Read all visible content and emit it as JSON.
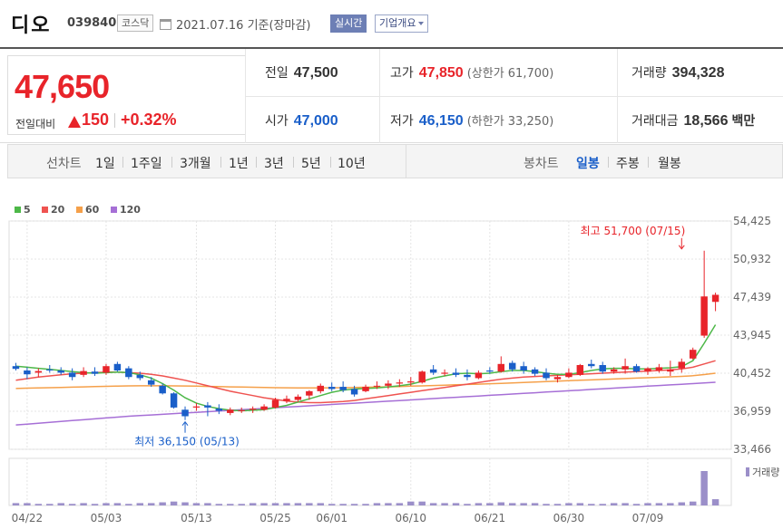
{
  "header": {
    "name": "디오",
    "code": "039840",
    "market": "코스닥",
    "date_text": "2021.07.16 기준(장마감)",
    "realtime_label": "실시간",
    "overview_label": "기업개요"
  },
  "quote": {
    "price": "47,650",
    "change_label": "전일대비",
    "change_amount": "150",
    "change_rate": "+0.32%",
    "prev_close_label": "전일",
    "prev_close": "47,500",
    "high_label": "고가",
    "high": "47,850",
    "upper_limit": "(상한가 61,700)",
    "volume_label": "거래량",
    "volume": "394,328",
    "open_label": "시가",
    "open": "47,000",
    "low_label": "저가",
    "low": "46,150",
    "lower_limit": "(하한가 33,250)",
    "amount_label": "거래대금",
    "amount": "18,566",
    "amount_unit": "백만"
  },
  "periods": {
    "line_chart_label": "선차트",
    "line_items": [
      "1일",
      "1주일",
      "3개월",
      "1년",
      "3년",
      "5년",
      "10년"
    ],
    "candle_chart_label": "봉차트",
    "candle_items": [
      "일봉",
      "주봉",
      "월봉"
    ],
    "active_candle": "일봉"
  },
  "colors": {
    "up": "#e8242a",
    "down": "#1a5fc9",
    "ma5": "#4db848",
    "ma20": "#ef5350",
    "ma60": "#f5a04a",
    "ma120": "#a66fd6",
    "volume": "#9b8fc9"
  },
  "chart_data": {
    "type": "candlestick",
    "legend": [
      {
        "name": "5",
        "color": "#4db848"
      },
      {
        "name": "20",
        "color": "#ef5350"
      },
      {
        "name": "60",
        "color": "#f5a04a"
      },
      {
        "name": "120",
        "color": "#a66fd6"
      }
    ],
    "y_ticks": [
      "54,425",
      "50,932",
      "47,439",
      "43,945",
      "40,452",
      "36,959",
      "33,466"
    ],
    "ylim": [
      33466,
      54425
    ],
    "x_ticks": [
      {
        "label": "04/22",
        "index": 1
      },
      {
        "label": "05/03",
        "index": 8
      },
      {
        "label": "05/13",
        "index": 16
      },
      {
        "label": "05/25",
        "index": 23
      },
      {
        "label": "06/01",
        "index": 28
      },
      {
        "label": "06/10",
        "index": 35
      },
      {
        "label": "06/21",
        "index": 42
      },
      {
        "label": "06/30",
        "index": 49
      },
      {
        "label": "07/09",
        "index": 56
      }
    ],
    "max_annotation": {
      "text": "최고 51,700 (07/15)",
      "index": 59,
      "value": 51700
    },
    "min_annotation": {
      "text": "최저 36,150 (05/13)",
      "index": 15,
      "value": 36150
    },
    "volume_label": "거래량",
    "candles": [
      {
        "o": 41100,
        "h": 41400,
        "l": 40700,
        "c": 40850
      },
      {
        "o": 40700,
        "h": 41000,
        "l": 39900,
        "c": 40350
      },
      {
        "o": 40500,
        "h": 40900,
        "l": 40100,
        "c": 40650
      },
      {
        "o": 40800,
        "h": 41200,
        "l": 40500,
        "c": 40700
      },
      {
        "o": 40700,
        "h": 41000,
        "l": 40300,
        "c": 40500
      },
      {
        "o": 40500,
        "h": 40900,
        "l": 39800,
        "c": 40100
      },
      {
        "o": 40300,
        "h": 41000,
        "l": 40100,
        "c": 40650
      },
      {
        "o": 40600,
        "h": 41000,
        "l": 40200,
        "c": 40400
      },
      {
        "o": 40500,
        "h": 41300,
        "l": 40300,
        "c": 41100
      },
      {
        "o": 41300,
        "h": 41500,
        "l": 40600,
        "c": 40700
      },
      {
        "o": 40900,
        "h": 41100,
        "l": 39900,
        "c": 40100
      },
      {
        "o": 40300,
        "h": 40600,
        "l": 39800,
        "c": 40000
      },
      {
        "o": 39800,
        "h": 40100,
        "l": 39200,
        "c": 39400
      },
      {
        "o": 39300,
        "h": 39500,
        "l": 38500,
        "c": 38600
      },
      {
        "o": 38600,
        "h": 38700,
        "l": 37200,
        "c": 37300
      },
      {
        "o": 37100,
        "h": 37400,
        "l": 36150,
        "c": 36500
      },
      {
        "o": 37300,
        "h": 37700,
        "l": 37000,
        "c": 37400
      },
      {
        "o": 37500,
        "h": 37800,
        "l": 36500,
        "c": 37300
      },
      {
        "o": 37200,
        "h": 37600,
        "l": 36700,
        "c": 37000
      },
      {
        "o": 36800,
        "h": 37300,
        "l": 36600,
        "c": 37100
      },
      {
        "o": 37000,
        "h": 37300,
        "l": 36800,
        "c": 37050
      },
      {
        "o": 37100,
        "h": 37400,
        "l": 36800,
        "c": 37200
      },
      {
        "o": 37100,
        "h": 37600,
        "l": 37000,
        "c": 37400
      },
      {
        "o": 37300,
        "h": 38200,
        "l": 37200,
        "c": 38000
      },
      {
        "o": 37900,
        "h": 38400,
        "l": 37700,
        "c": 38100
      },
      {
        "o": 38000,
        "h": 38500,
        "l": 37800,
        "c": 38300
      },
      {
        "o": 38400,
        "h": 38900,
        "l": 38000,
        "c": 38800
      },
      {
        "o": 38800,
        "h": 39500,
        "l": 38600,
        "c": 39300
      },
      {
        "o": 39200,
        "h": 39600,
        "l": 38800,
        "c": 39000
      },
      {
        "o": 39200,
        "h": 39700,
        "l": 38700,
        "c": 38900
      },
      {
        "o": 39000,
        "h": 39300,
        "l": 38300,
        "c": 38500
      },
      {
        "o": 38800,
        "h": 39400,
        "l": 38700,
        "c": 39200
      },
      {
        "o": 39300,
        "h": 39700,
        "l": 39000,
        "c": 39300
      },
      {
        "o": 39300,
        "h": 39800,
        "l": 39000,
        "c": 39500
      },
      {
        "o": 39500,
        "h": 39900,
        "l": 39200,
        "c": 39600
      },
      {
        "o": 39600,
        "h": 40100,
        "l": 39300,
        "c": 39700
      },
      {
        "o": 39600,
        "h": 40700,
        "l": 39500,
        "c": 40600
      },
      {
        "o": 40800,
        "h": 41200,
        "l": 40300,
        "c": 40500
      },
      {
        "o": 40400,
        "h": 40800,
        "l": 40200,
        "c": 40500
      },
      {
        "o": 40500,
        "h": 40900,
        "l": 40100,
        "c": 40300
      },
      {
        "o": 40300,
        "h": 40800,
        "l": 39800,
        "c": 40100
      },
      {
        "o": 40000,
        "h": 40700,
        "l": 39900,
        "c": 40500
      },
      {
        "o": 40700,
        "h": 41000,
        "l": 40400,
        "c": 40600
      },
      {
        "o": 40600,
        "h": 42000,
        "l": 40500,
        "c": 41300
      },
      {
        "o": 41400,
        "h": 41600,
        "l": 40600,
        "c": 40800
      },
      {
        "o": 41100,
        "h": 41500,
        "l": 40400,
        "c": 40700
      },
      {
        "o": 40800,
        "h": 41000,
        "l": 40200,
        "c": 40400
      },
      {
        "o": 40500,
        "h": 40900,
        "l": 39800,
        "c": 40000
      },
      {
        "o": 39900,
        "h": 40300,
        "l": 39600,
        "c": 40100
      },
      {
        "o": 40100,
        "h": 40900,
        "l": 40000,
        "c": 40500
      },
      {
        "o": 40300,
        "h": 41300,
        "l": 40200,
        "c": 41200
      },
      {
        "o": 41300,
        "h": 41700,
        "l": 40900,
        "c": 41100
      },
      {
        "o": 41200,
        "h": 41500,
        "l": 40400,
        "c": 40600
      },
      {
        "o": 40600,
        "h": 41000,
        "l": 40400,
        "c": 40800
      },
      {
        "o": 40800,
        "h": 41800,
        "l": 40400,
        "c": 41100
      },
      {
        "o": 41100,
        "h": 41300,
        "l": 40500,
        "c": 40600
      },
      {
        "o": 40600,
        "h": 41000,
        "l": 40300,
        "c": 40900
      },
      {
        "o": 40700,
        "h": 41300,
        "l": 40500,
        "c": 41000
      },
      {
        "o": 40600,
        "h": 41600,
        "l": 40200,
        "c": 40800
      },
      {
        "o": 40900,
        "h": 41800,
        "l": 40500,
        "c": 41500
      },
      {
        "o": 41800,
        "h": 42800,
        "l": 41700,
        "c": 42600
      },
      {
        "o": 43900,
        "h": 51700,
        "l": 43700,
        "c": 47500
      },
      {
        "o": 47000,
        "h": 47850,
        "l": 46150,
        "c": 47650
      }
    ],
    "volumes": [
      3,
      3,
      2,
      2,
      3,
      2,
      3,
      2,
      3,
      3,
      2,
      3,
      3,
      4,
      5,
      4,
      3,
      3,
      2,
      2,
      2,
      3,
      3,
      3,
      3,
      3,
      3,
      3,
      2,
      2,
      2,
      2,
      3,
      3,
      3,
      5,
      5,
      3,
      3,
      3,
      2,
      3,
      3,
      4,
      3,
      3,
      3,
      2,
      2,
      3,
      3,
      2,
      2,
      3,
      3,
      2,
      3,
      3,
      3,
      4,
      5,
      44,
      8
    ],
    "ma5": [
      41100,
      41000,
      40900,
      40800,
      40700,
      40600,
      40500,
      40450,
      40500,
      40550,
      40500,
      40300,
      40000,
      39500,
      38900,
      38200,
      37700,
      37400,
      37200,
      37050,
      37000,
      37050,
      37100,
      37300,
      37500,
      37800,
      38100,
      38400,
      38700,
      38900,
      39000,
      39050,
      39100,
      39200,
      39300,
      39450,
      39700,
      40000,
      40200,
      40400,
      40450,
      40400,
      40450,
      40600,
      40700,
      40700,
      40600,
      40450,
      40350,
      40350,
      40500,
      40700,
      40850,
      40900,
      40900,
      40850,
      40850,
      40900,
      40950,
      41050,
      41600,
      43200,
      44900
    ],
    "ma20": [
      39800,
      39950,
      40100,
      40200,
      40300,
      40400,
      40450,
      40500,
      40550,
      40550,
      40500,
      40450,
      40350,
      40200,
      40000,
      39800,
      39550,
      39300,
      39050,
      38800,
      38600,
      38400,
      38200,
      38050,
      37900,
      37800,
      37750,
      37750,
      37800,
      37850,
      37950,
      38100,
      38250,
      38400,
      38550,
      38700,
      38850,
      39000,
      39150,
      39300,
      39450,
      39600,
      39750,
      39900,
      40000,
      40100,
      40150,
      40200,
      40250,
      40300,
      40350,
      40400,
      40450,
      40500,
      40550,
      40600,
      40650,
      40700,
      40750,
      40850,
      41000,
      41300,
      41600
    ],
    "ma60": [
      39050,
      39080,
      39100,
      39120,
      39150,
      39170,
      39200,
      39230,
      39250,
      39270,
      39290,
      39300,
      39300,
      39300,
      39290,
      39280,
      39260,
      39240,
      39220,
      39200,
      39180,
      39160,
      39140,
      39120,
      39110,
      39100,
      39100,
      39100,
      39110,
      39120,
      39140,
      39160,
      39180,
      39200,
      39230,
      39260,
      39290,
      39320,
      39350,
      39390,
      39420,
      39450,
      39490,
      39520,
      39560,
      39600,
      39640,
      39680,
      39720,
      39760,
      39800,
      39840,
      39880,
      39920,
      39960,
      40000,
      40040,
      40080,
      40120,
      40160,
      40220,
      40330,
      40450
    ],
    "ma120": [
      35700,
      35780,
      35860,
      35940,
      36020,
      36100,
      36180,
      36260,
      36340,
      36420,
      36500,
      36560,
      36620,
      36680,
      36740,
      36800,
      36860,
      36920,
      36980,
      37040,
      37100,
      37160,
      37220,
      37280,
      37340,
      37400,
      37460,
      37520,
      37580,
      37640,
      37700,
      37760,
      37820,
      37880,
      37940,
      38000,
      38060,
      38120,
      38180,
      38240,
      38300,
      38360,
      38420,
      38480,
      38540,
      38600,
      38660,
      38720,
      38780,
      38840,
      38900,
      38960,
      39020,
      39080,
      39140,
      39200,
      39260,
      39320,
      39380,
      39440,
      39500,
      39560,
      39620
    ]
  }
}
